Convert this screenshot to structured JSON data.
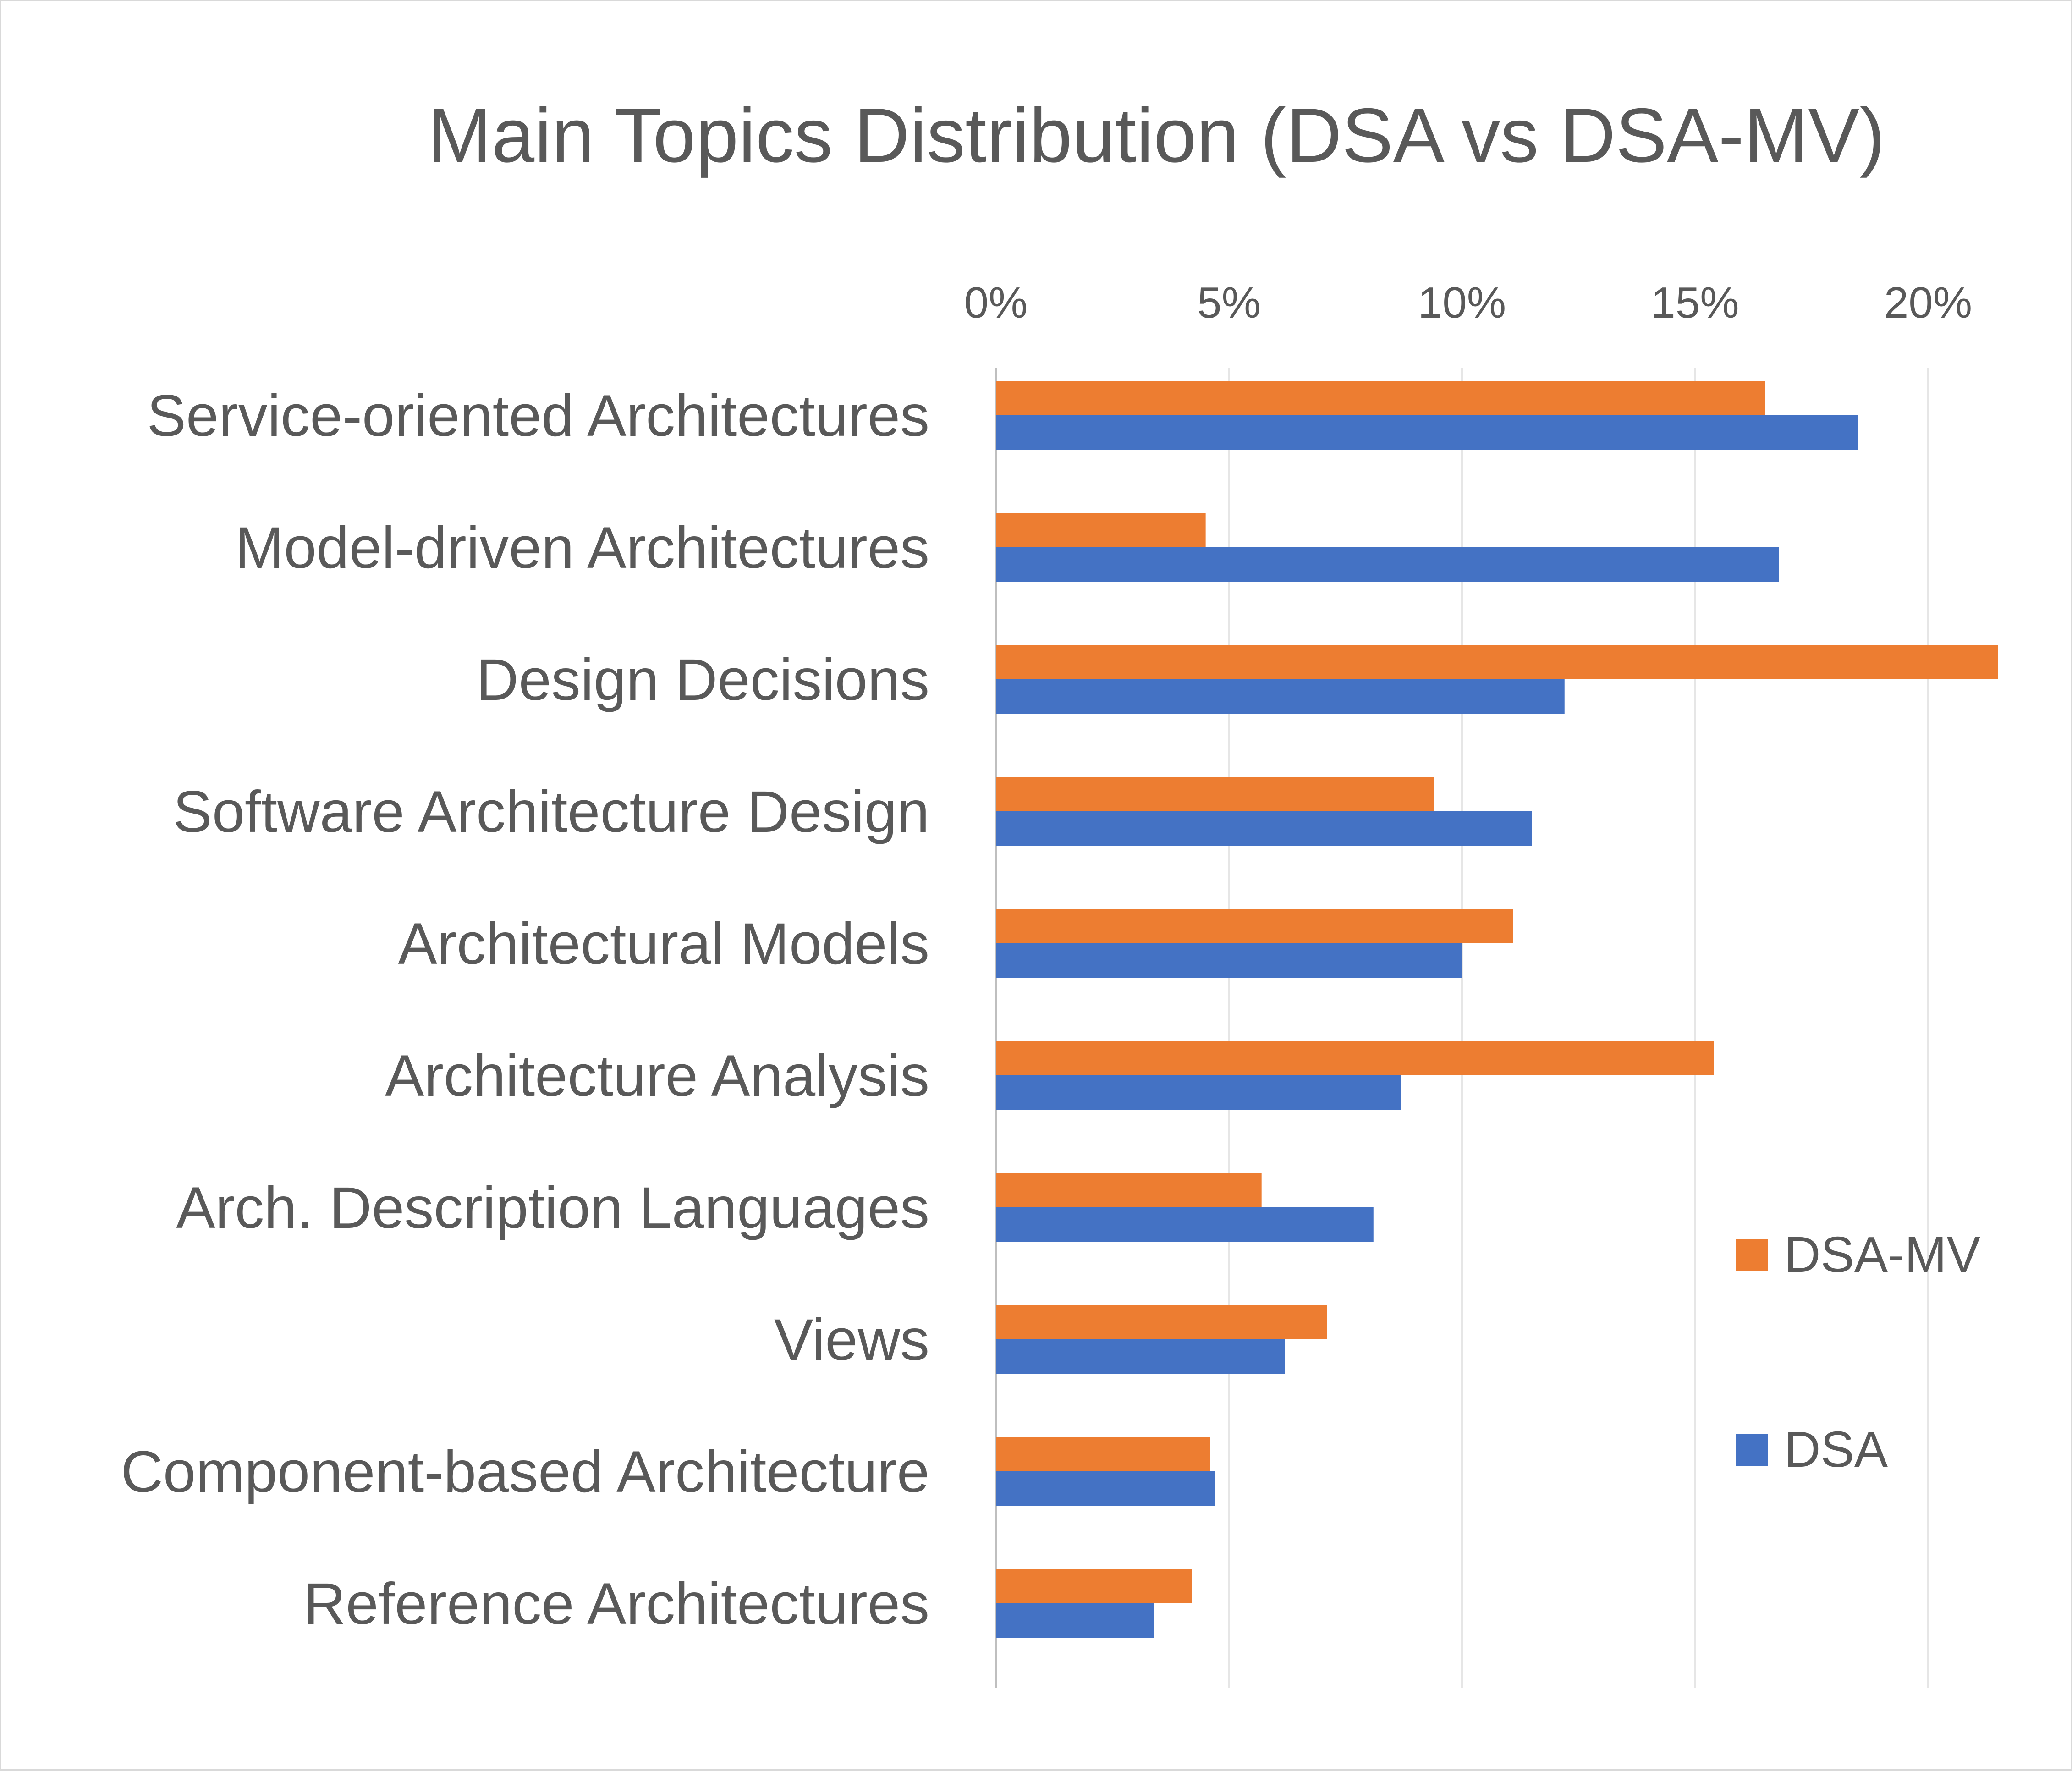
{
  "chart_data": {
    "type": "bar",
    "orientation": "horizontal",
    "title": "Main Topics Distribution (DSA vs DSA-MV)",
    "xlabel": "",
    "ylabel": "",
    "x_axis_position": "top",
    "xlim": [
      0,
      22
    ],
    "x_ticks": [
      0,
      5,
      10,
      15,
      20
    ],
    "x_tick_labels": [
      "0%",
      "5%",
      "10%",
      "15%",
      "20%"
    ],
    "grid": true,
    "legend_position": "right",
    "categories": [
      "Service-oriented Architectures",
      "Model-driven Architectures",
      "Design Decisions",
      "Software Architecture Design",
      "Architectural Models",
      "Architecture Analysis",
      "Arch. Description Languages",
      "Views",
      "Component-based Architecture",
      "Reference Architectures"
    ],
    "series": [
      {
        "name": "DSA-MV",
        "color": "#ED7D31",
        "values": [
          16.5,
          4.5,
          21.5,
          9.4,
          11.1,
          15.4,
          5.7,
          7.1,
          4.6,
          4.2
        ]
      },
      {
        "name": "DSA",
        "color": "#4472C4",
        "values": [
          18.5,
          16.8,
          12.2,
          11.5,
          10.0,
          8.7,
          8.1,
          6.2,
          4.7,
          3.4
        ]
      }
    ]
  }
}
